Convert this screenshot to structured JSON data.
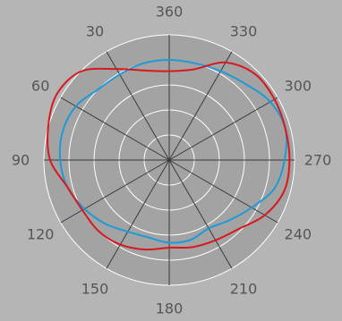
{
  "colors": {
    "background": "#b5b5b5",
    "plot_face": "#a3a3a3",
    "ring_grid": "#ffffff",
    "spoke_grid": "#3a3a3a",
    "tick_text": "#555555"
  },
  "chart_data": {
    "type": "polar-line",
    "angle_unit": "degrees",
    "angle_zero": "top",
    "angle_direction": "counterclockwise",
    "radial_range": [
      0,
      1
    ],
    "radial_gridlines": [
      0.2,
      0.4,
      0.6,
      0.8,
      1.0
    ],
    "radial_tick_labels_shown": false,
    "grid": true,
    "angular_tick_labels": [
      "360",
      "30",
      "60",
      "90",
      "120",
      "150",
      "180",
      "210",
      "240",
      "270",
      "300",
      "330"
    ],
    "angular_tick_values": [
      0,
      30,
      60,
      90,
      120,
      150,
      180,
      210,
      240,
      270,
      300,
      330
    ],
    "series": [
      {
        "color": "#1f9ad6",
        "angles": [
          0,
          15,
          30,
          45,
          60,
          75,
          90,
          105,
          120,
          135,
          150,
          165,
          180,
          195,
          210,
          225,
          240,
          255,
          270,
          285,
          300,
          315,
          330,
          345
        ],
        "r": [
          0.8,
          0.8,
          0.79,
          0.8,
          0.86,
          0.88,
          0.87,
          0.84,
          0.78,
          0.72,
          0.66,
          0.64,
          0.66,
          0.66,
          0.63,
          0.68,
          0.76,
          0.87,
          0.92,
          0.96,
          0.93,
          0.86,
          0.82,
          0.8
        ]
      },
      {
        "color": "#d7191f",
        "angles": [
          0,
          15,
          30,
          45,
          60,
          75,
          90,
          105,
          120,
          135,
          150,
          165,
          180,
          195,
          210,
          225,
          240,
          255,
          270,
          285,
          300,
          315,
          330,
          345
        ],
        "r": [
          0.71,
          0.74,
          0.84,
          1.0,
          1.04,
          1.0,
          0.95,
          0.84,
          0.8,
          0.8,
          0.78,
          0.74,
          0.7,
          0.72,
          0.74,
          0.78,
          0.88,
          0.95,
          0.96,
          0.96,
          0.97,
          0.97,
          0.9,
          0.75
        ]
      }
    ]
  }
}
